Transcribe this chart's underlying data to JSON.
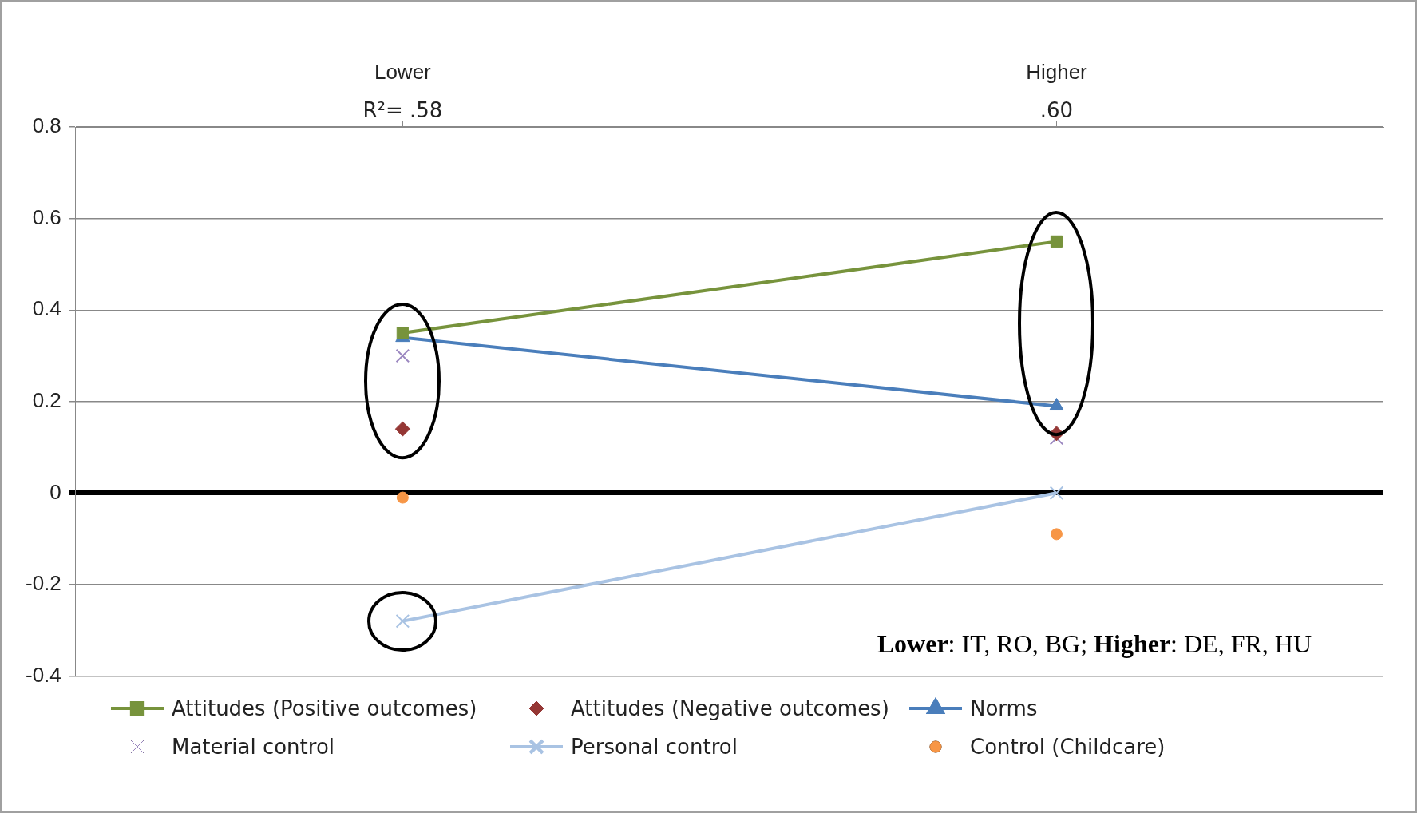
{
  "chart_data": {
    "type": "line",
    "categories": [
      "Lower",
      "Higher"
    ],
    "series": [
      {
        "name": "Attitudes (Positive outcomes)",
        "marker": "square",
        "color": "#77933c",
        "values": [
          0.35,
          0.55
        ]
      },
      {
        "name": "Attitudes (Negative outcomes)",
        "type": "scatter",
        "marker": "diamond",
        "color": "#953735",
        "x": [
          "Lower",
          "Higher"
        ],
        "values": [
          0.14,
          0.13
        ]
      },
      {
        "name": "Norms",
        "marker": "triangle",
        "color": "#4a7ebb",
        "values": [
          0.34,
          0.19
        ]
      },
      {
        "name": "Material control",
        "type": "scatter",
        "marker": "cross",
        "color": "#9b87c0",
        "x": [
          "Lower",
          "Higher"
        ],
        "values": [
          0.3,
          0.12
        ]
      },
      {
        "name": "Personal control",
        "marker": "cross",
        "color": "#a9c3e3",
        "values": [
          -0.28,
          0.0
        ]
      },
      {
        "name": "Control (Childcare)",
        "type": "scatter",
        "marker": "circle",
        "color": "#f79646",
        "x": [
          "Lower",
          "Higher"
        ],
        "values": [
          -0.01,
          -0.09
        ]
      }
    ],
    "ylim": [
      -0.4,
      0.8
    ],
    "yticks": [
      -0.4,
      -0.2,
      0,
      0.2,
      0.4,
      0.6,
      0.8
    ],
    "grid": "y",
    "legend": "bottom",
    "annotations": [
      "R²= .58",
      ".60",
      "Lower: IT, RO, BG; Higher: DE, FR, HU"
    ]
  }
}
